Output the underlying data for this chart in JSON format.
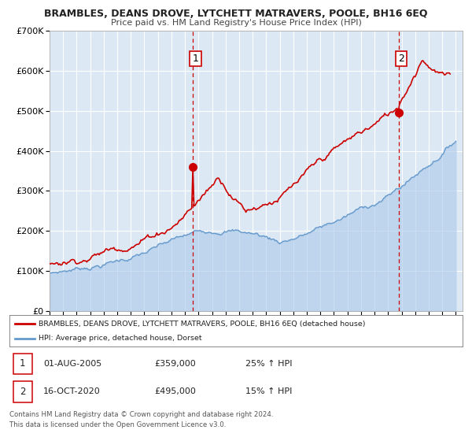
{
  "title": "BRAMBLES, DEANS DROVE, LYTCHETT MATRAVERS, POOLE, BH16 6EQ",
  "subtitle": "Price paid vs. HM Land Registry's House Price Index (HPI)",
  "background_color": "#ffffff",
  "plot_bg_color": "#dce9f5",
  "grid_color": "#ffffff",
  "ylim": [
    0,
    700000
  ],
  "yticks": [
    0,
    100000,
    200000,
    300000,
    400000,
    500000,
    600000,
    700000
  ],
  "ytick_labels": [
    "£0",
    "£100K",
    "£200K",
    "£300K",
    "£400K",
    "£500K",
    "£600K",
    "£700K"
  ],
  "xlim_start": 1995.0,
  "xlim_end": 2025.5,
  "xtick_years": [
    1995,
    1996,
    1997,
    1998,
    1999,
    2000,
    2001,
    2002,
    2003,
    2004,
    2005,
    2006,
    2007,
    2008,
    2009,
    2010,
    2011,
    2012,
    2013,
    2014,
    2015,
    2016,
    2017,
    2018,
    2019,
    2020,
    2021,
    2022,
    2023,
    2024,
    2025
  ],
  "red_line_color": "#cc0000",
  "blue_line_color": "#6699cc",
  "blue_fill_color": "#aac8e8",
  "marker1_x": 2005.58,
  "marker1_y": 359000,
  "marker2_x": 2020.79,
  "marker2_y": 495000,
  "vline1_x": 2005.58,
  "vline2_x": 2020.79,
  "legend_red_label": "BRAMBLES, DEANS DROVE, LYTCHETT MATRAVERS, POOLE, BH16 6EQ (detached house)",
  "legend_blue_label": "HPI: Average price, detached house, Dorset",
  "annotation1_date": "01-AUG-2005",
  "annotation1_price": "£359,000",
  "annotation1_hpi": "25% ↑ HPI",
  "annotation2_date": "16-OCT-2020",
  "annotation2_price": "£495,000",
  "annotation2_hpi": "15% ↑ HPI",
  "footer1": "Contains HM Land Registry data © Crown copyright and database right 2024.",
  "footer2": "This data is licensed under the Open Government Licence v3.0."
}
